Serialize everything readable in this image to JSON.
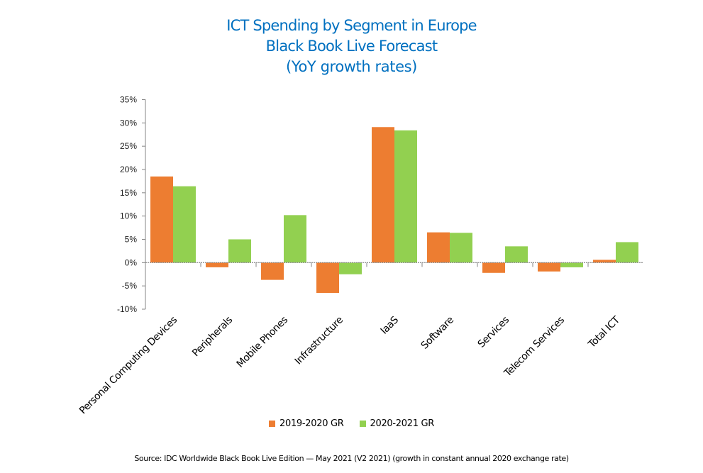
{
  "chart_data": {
    "type": "bar",
    "title": "ICT Spending by Segment in Europe",
    "subtitle": "Black Book Live Forecast",
    "subtitle2": "(YoY growth rates)",
    "xlabel": "",
    "ylabel": "",
    "ylim": [
      -10,
      35
    ],
    "yticks": [
      -10,
      -5,
      0,
      5,
      10,
      15,
      20,
      25,
      30,
      35
    ],
    "ytick_labels": [
      "-10%",
      "-5%",
      "0%",
      "5%",
      "10%",
      "15%",
      "20%",
      "25%",
      "30%",
      "35%"
    ],
    "grid": false,
    "legend_position": "bottom",
    "categories": [
      "Personal Computing Devices",
      "Peripherals",
      "Mobile Phones",
      "Infrastructure",
      "IaaS",
      "Software",
      "Services",
      "Telecom Services",
      "Total ICT"
    ],
    "series": [
      {
        "name": "2019-2020 GR",
        "color": "#ED7D31",
        "values": [
          18.5,
          -1.0,
          -3.7,
          -6.5,
          29.1,
          6.5,
          -2.2,
          -1.9,
          0.6
        ]
      },
      {
        "name": "2020-2021 GR",
        "color": "#92D050",
        "values": [
          16.4,
          5.0,
          10.2,
          -2.5,
          28.4,
          6.4,
          3.5,
          -1.0,
          4.4
        ]
      }
    ],
    "unit": "%"
  },
  "source": "Source:  IDC Worldwide Black Book Live Edition — May 2021 (V2 2021) (growth  in constant annual 2020 exchange rate)",
  "colors": {
    "title": "#0070C0",
    "axis": "#868686"
  }
}
